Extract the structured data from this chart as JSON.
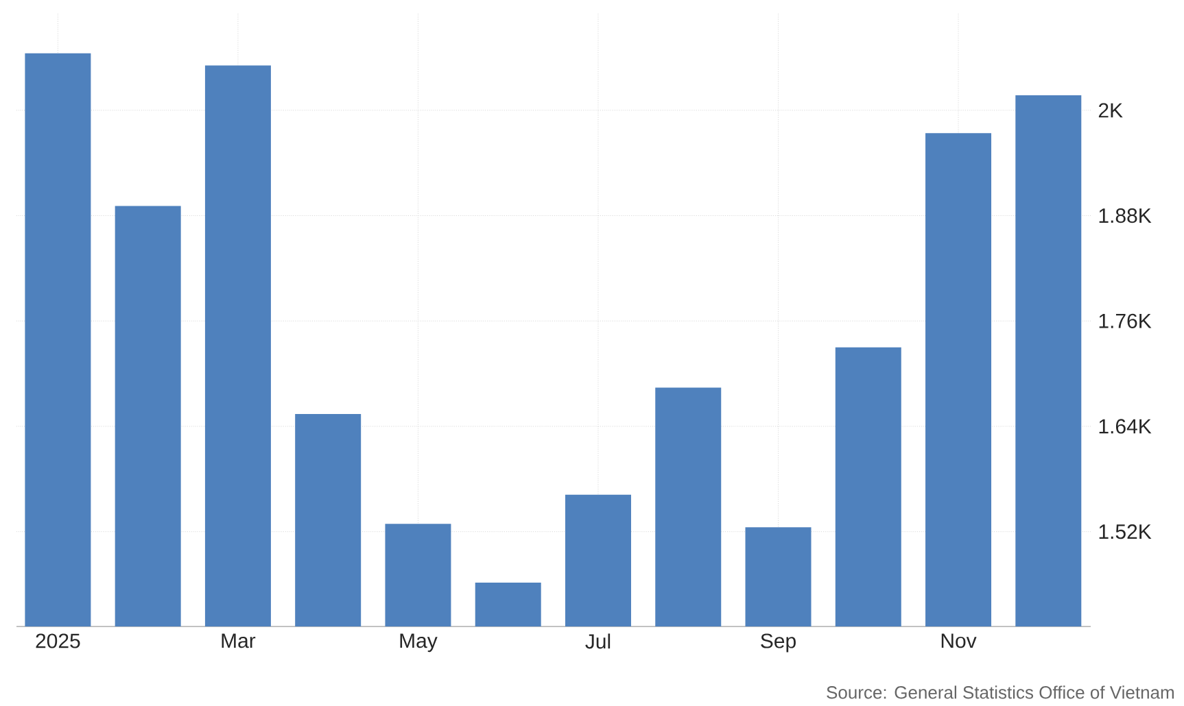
{
  "chart_data": {
    "type": "bar",
    "categories": [
      "2025",
      null,
      "Mar",
      null,
      "May",
      null,
      "Jul",
      null,
      "Sep",
      null,
      "Nov",
      null
    ],
    "values": [
      2065,
      1891,
      2051,
      1654,
      1529,
      1462,
      1562,
      1684,
      1525,
      1730,
      1974,
      2017
    ],
    "color": "#4f81bd",
    "ylim": [
      1412,
      2110
    ],
    "yticks": [
      {
        "value": 1520,
        "label": "1.52K"
      },
      {
        "value": 1640,
        "label": "1.64K"
      },
      {
        "value": 1760,
        "label": "1.76K"
      },
      {
        "value": 1880,
        "label": "1.88K"
      },
      {
        "value": 2000,
        "label": "2K"
      }
    ],
    "grid": true,
    "annotations": [
      "Source: General Statistics Office of Vietnam"
    ]
  }
}
